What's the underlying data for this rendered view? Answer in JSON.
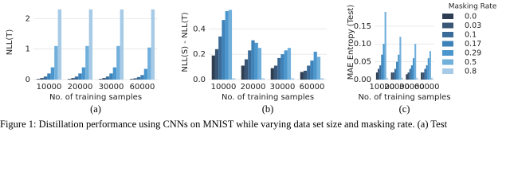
{
  "chart_data": [
    {
      "type": "bar",
      "label": "(a)",
      "ylabel": "NLL(T)",
      "xlabel": "No. of training samples",
      "categories": [
        "10000",
        "20000",
        "30000",
        "60000"
      ],
      "ylim": [
        0,
        2.45
      ],
      "yticks": [
        0,
        1,
        2
      ],
      "grid": true,
      "series": [
        {
          "color": "#2d3e52",
          "values": [
            0.02,
            0.02,
            0.02,
            0.02
          ]
        },
        {
          "color": "#3a5676",
          "values": [
            0.05,
            0.05,
            0.05,
            0.04
          ]
        },
        {
          "color": "#3b6c99",
          "values": [
            0.1,
            0.1,
            0.1,
            0.08
          ]
        },
        {
          "color": "#3d82b9",
          "values": [
            0.2,
            0.2,
            0.2,
            0.15
          ]
        },
        {
          "color": "#4b97cd",
          "values": [
            0.4,
            0.4,
            0.4,
            0.35
          ]
        },
        {
          "color": "#72b0dc",
          "values": [
            1.1,
            1.1,
            1.1,
            1.05
          ]
        },
        {
          "color": "#a7cbe6",
          "values": [
            2.3,
            2.3,
            2.3,
            2.3
          ]
        }
      ]
    },
    {
      "type": "bar",
      "label": "(b)",
      "ylabel": "NLL(S) - NLL(T)",
      "xlabel": "No. of training samples",
      "categories": [
        "10000",
        "20000",
        "30000",
        "60000"
      ],
      "ylim": [
        0,
        0.59
      ],
      "yticks": [
        {
          "value": 0,
          "label": "0.0"
        },
        {
          "value": 0.2,
          "label": "0.2"
        },
        {
          "value": 0.4,
          "label": "0.4"
        }
      ],
      "grid": true,
      "series": [
        {
          "color": "#2d3e52",
          "values": [
            0.19,
            0.11,
            0.09,
            0.06
          ]
        },
        {
          "color": "#3a5676",
          "values": [
            0.24,
            0.16,
            0.11,
            0.07
          ]
        },
        {
          "color": "#3b6c99",
          "values": [
            0.34,
            0.23,
            0.17,
            0.11
          ]
        },
        {
          "color": "#3d82b9",
          "values": [
            0.47,
            0.31,
            0.2,
            0.15
          ]
        },
        {
          "color": "#4b97cd",
          "values": [
            0.54,
            0.29,
            0.23,
            0.22
          ]
        },
        {
          "color": "#72b0dc",
          "values": [
            0.55,
            0.25,
            0.25,
            0.18
          ]
        },
        {
          "color": "#a7cbe6",
          "values": [
            0.01,
            0.01,
            0.01,
            0.01
          ]
        }
      ]
    },
    {
      "type": "bar",
      "label": "(c)",
      "ylabel": "MAE Entropy (Test)",
      "xlabel": "No. of training samples",
      "categories": [
        "10000",
        "20000",
        "30000",
        "60000"
      ],
      "ylim": [
        0,
        0.21
      ],
      "yticks": [
        {
          "value": 0,
          "label": "0.00"
        },
        {
          "value": 0.05,
          "label": "0.05"
        },
        {
          "value": 0.1,
          "label": "0.10"
        },
        {
          "value": 0.15,
          "label": "0.15"
        }
      ],
      "grid": true,
      "legend": "right",
      "legend_title": "Masking Rate",
      "series": [
        {
          "name": "0.0",
          "color": "#2d3e52",
          "values": [
            0.02,
            0.02,
            0.015,
            0.02
          ]
        },
        {
          "name": "0.03",
          "color": "#3a5676",
          "values": [
            0.03,
            0.02,
            0.02,
            0.02
          ]
        },
        {
          "name": "0.1",
          "color": "#3b6c99",
          "values": [
            0.04,
            0.03,
            0.03,
            0.03
          ]
        },
        {
          "name": "0.17",
          "color": "#3d82b9",
          "values": [
            0.07,
            0.05,
            0.04,
            0.04
          ]
        },
        {
          "name": "0.29",
          "color": "#4b97cd",
          "values": [
            0.1,
            0.07,
            0.06,
            0.06
          ]
        },
        {
          "name": "0.5",
          "color": "#72b0dc",
          "values": [
            0.19,
            0.12,
            0.1,
            0.08
          ]
        },
        {
          "name": "0.8",
          "color": "#a7cbe6",
          "values": [
            0.005,
            0.005,
            0.005,
            0.005
          ]
        }
      ]
    }
  ],
  "caption": "Figure 1: Distillation performance using CNNs on MNIST while varying data set size and masking rate. (a) Test"
}
